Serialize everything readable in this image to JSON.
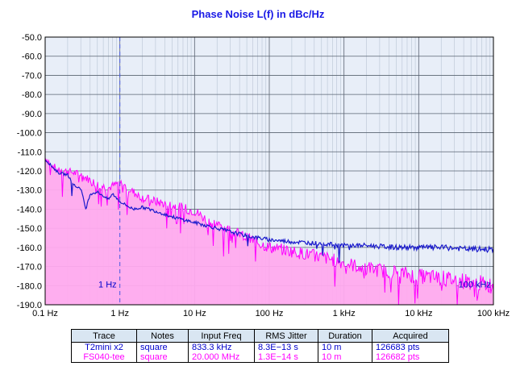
{
  "chart_data": {
    "type": "line",
    "title": "Phase Noise L(f) in dBc/Hz",
    "xlabel": "",
    "ylabel": "",
    "x_scale": "log",
    "xlim": [
      0.1,
      100000
    ],
    "ylim": [
      -190,
      -50
    ],
    "grid": true,
    "x_ticks": [
      "0.1 Hz",
      "1 Hz",
      "10 Hz",
      "100 Hz",
      "1 kHz",
      "10 kHz",
      "100 kHz"
    ],
    "y_ticks": [
      "-50.0",
      "-60.0",
      "-70.0",
      "-80.0",
      "-90.0",
      "-100.0",
      "-110.0",
      "-120.0",
      "-130.0",
      "-140.0",
      "-150.0",
      "-160.0",
      "-170.0",
      "-180.0",
      "-190.0"
    ],
    "markers": [
      {
        "x": 1,
        "label": "1 Hz"
      },
      {
        "x": 100000,
        "label": "100 kHz"
      }
    ],
    "series": [
      {
        "name": "T2mini x2",
        "color": "#1a1acc",
        "points": [
          [
            0.1,
            -114
          ],
          [
            0.15,
            -121
          ],
          [
            0.2,
            -122
          ],
          [
            0.25,
            -128
          ],
          [
            0.3,
            -129
          ],
          [
            0.35,
            -140
          ],
          [
            0.4,
            -132
          ],
          [
            0.5,
            -131
          ],
          [
            0.6,
            -133
          ],
          [
            0.7,
            -135
          ],
          [
            0.8,
            -132
          ],
          [
            1,
            -136
          ],
          [
            1.5,
            -140
          ],
          [
            2,
            -139
          ],
          [
            3,
            -141
          ],
          [
            5,
            -144
          ],
          [
            10,
            -147
          ],
          [
            20,
            -150
          ],
          [
            50,
            -154
          ],
          [
            100,
            -156
          ],
          [
            200,
            -157
          ],
          [
            500,
            -158
          ],
          [
            1000,
            -159
          ],
          [
            2000,
            -159
          ],
          [
            5000,
            -160
          ],
          [
            10000,
            -160
          ],
          [
            20000,
            -160
          ],
          [
            50000,
            -161
          ],
          [
            100000,
            -161
          ]
        ]
      },
      {
        "name": "FS040-tee",
        "color": "#ff00ff",
        "points": [
          [
            0.1,
            -113
          ],
          [
            0.15,
            -120
          ],
          [
            0.2,
            -120
          ],
          [
            0.3,
            -122
          ],
          [
            0.5,
            -127
          ],
          [
            0.7,
            -129
          ],
          [
            1,
            -126
          ],
          [
            1.5,
            -131
          ],
          [
            2,
            -134
          ],
          [
            3,
            -136
          ],
          [
            5,
            -138
          ],
          [
            10,
            -141
          ],
          [
            15,
            -146
          ],
          [
            20,
            -148
          ],
          [
            50,
            -155
          ],
          [
            100,
            -160
          ],
          [
            200,
            -162
          ],
          [
            500,
            -165
          ],
          [
            1000,
            -168
          ],
          [
            2000,
            -171
          ],
          [
            5000,
            -173
          ],
          [
            10000,
            -175
          ],
          [
            20000,
            -176
          ],
          [
            50000,
            -178
          ],
          [
            100000,
            -180
          ]
        ]
      }
    ]
  },
  "legend": {
    "headers": [
      "Trace",
      "Notes",
      "Input Freq",
      "RMS Jitter",
      "Duration",
      "Acquired"
    ],
    "rows": [
      {
        "trace": "T2mini x2",
        "notes": "square",
        "freq": "833.3 kHz",
        "jitter": "8.3E−13 s",
        "duration": "10 m",
        "acquired": "126683 pts"
      },
      {
        "trace": "FS040-tee",
        "notes": "square",
        "freq": "20.000 MHz",
        "jitter": "1.3E−14 s",
        "duration": "10 m",
        "acquired": "126682 pts"
      }
    ]
  }
}
